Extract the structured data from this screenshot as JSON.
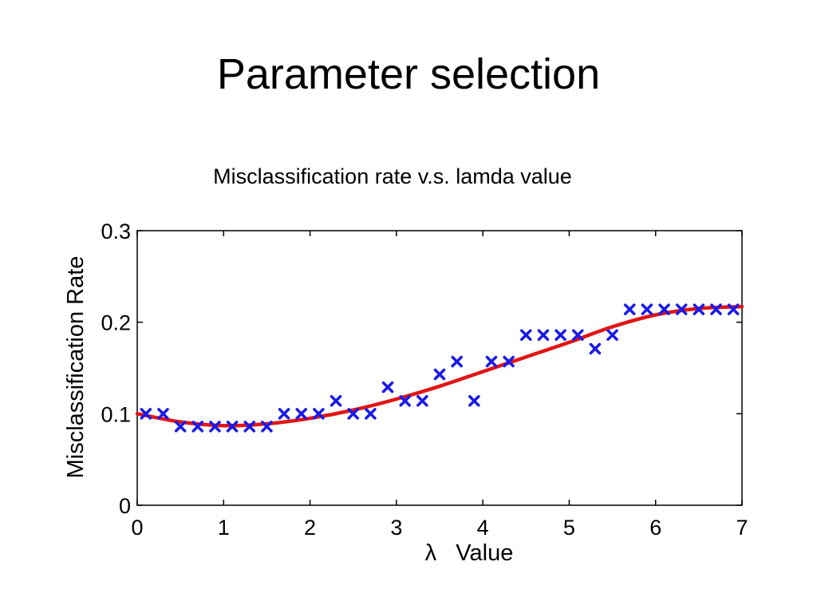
{
  "slide": {
    "title": "Parameter selection",
    "subtitle": "Misclassification rate v.s. lamda value"
  },
  "colors": {
    "scatter": "#1a1ae6",
    "fit": "#e01515",
    "axis": "#000000"
  },
  "chart_data": {
    "type": "scatter",
    "xlabel": "λ   Value",
    "ylabel": "Misclassification Rate",
    "xlim": [
      0,
      7
    ],
    "ylim": [
      0,
      0.3
    ],
    "xticks": [
      0,
      1,
      2,
      3,
      4,
      5,
      6,
      7
    ],
    "yticks": [
      0,
      0.1,
      0.2,
      0.3
    ],
    "grid": false,
    "series": [
      {
        "marker": "x",
        "x": [
          0.1,
          0.3,
          0.5,
          0.7,
          0.9,
          1.1,
          1.3,
          1.5,
          1.7,
          1.9,
          2.1,
          2.3,
          2.5,
          2.7,
          2.9,
          3.1,
          3.3,
          3.5,
          3.7,
          3.9,
          4.1,
          4.3,
          4.5,
          4.7,
          4.9,
          5.1,
          5.3,
          5.5,
          5.7,
          5.9,
          6.1,
          6.3,
          6.5,
          6.7,
          6.9
        ],
        "y": [
          0.1,
          0.1,
          0.086,
          0.086,
          0.086,
          0.086,
          0.086,
          0.086,
          0.1,
          0.1,
          0.1,
          0.114,
          0.1,
          0.1,
          0.129,
          0.114,
          0.114,
          0.143,
          0.157,
          0.114,
          0.157,
          0.157,
          0.186,
          0.186,
          0.186,
          0.186,
          0.171,
          0.186,
          0.214,
          0.214,
          0.214,
          0.214,
          0.214,
          0.214,
          0.214
        ]
      },
      {
        "line": "smooth-fit",
        "x": [
          0,
          0.5,
          1,
          1.5,
          2,
          2.5,
          3,
          3.5,
          4,
          4.5,
          5,
          5.5,
          6,
          6.5,
          7
        ],
        "y": [
          0.1,
          0.091,
          0.087,
          0.089,
          0.095,
          0.104,
          0.116,
          0.13,
          0.146,
          0.162,
          0.178,
          0.195,
          0.208,
          0.215,
          0.217
        ]
      }
    ]
  }
}
